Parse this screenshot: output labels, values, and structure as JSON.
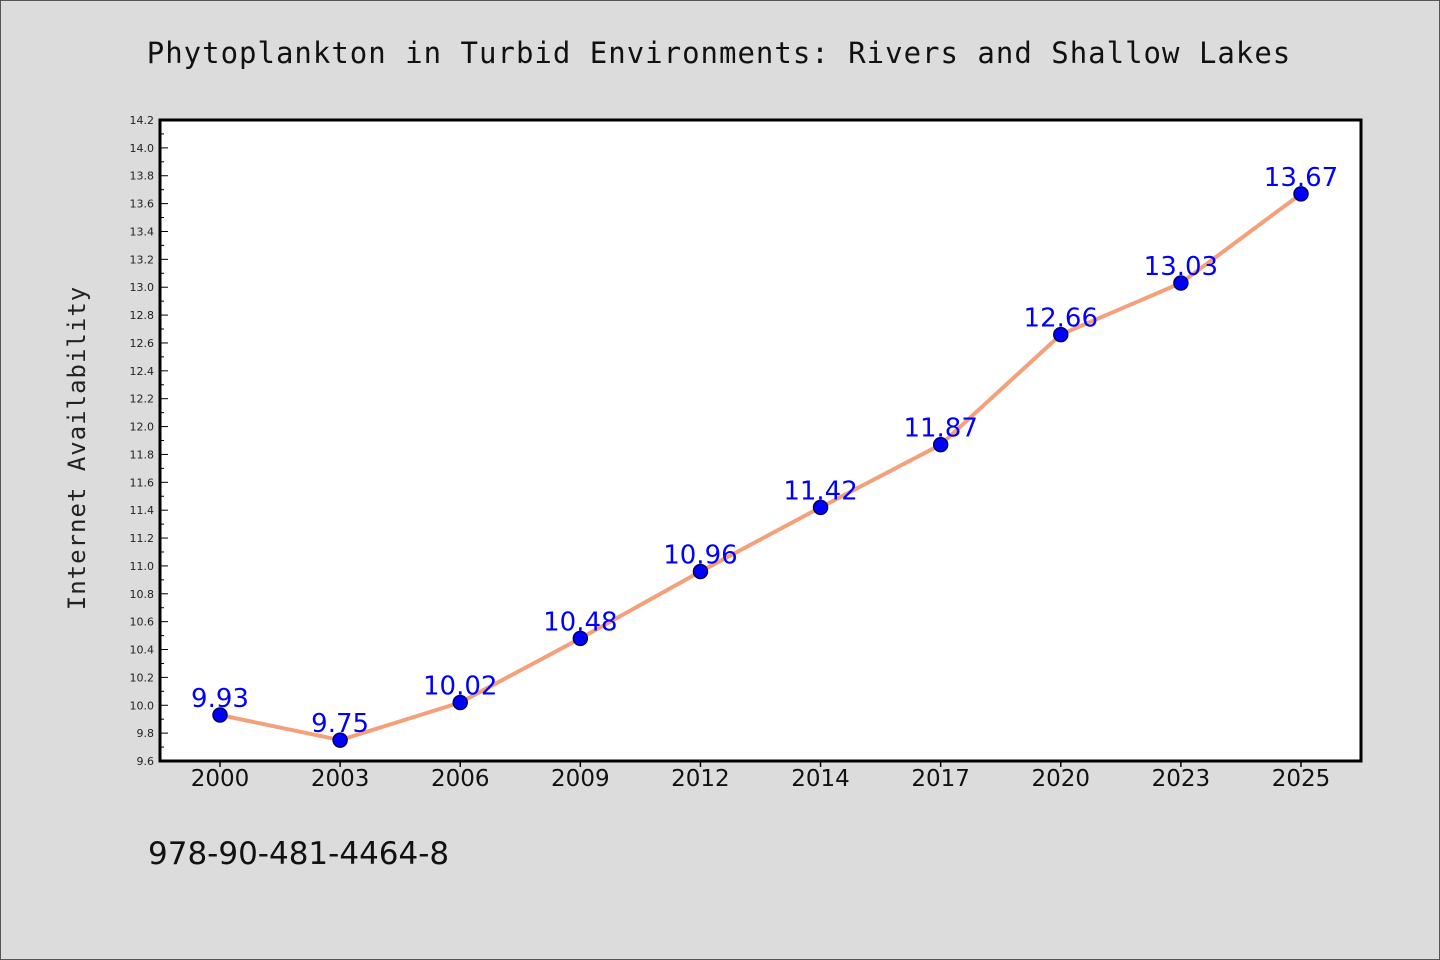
{
  "chart_data": {
    "type": "line",
    "title": "Phytoplankton in Turbid Environments: Rivers and Shallow Lakes",
    "xlabel": "",
    "ylabel": "Internet Availability",
    "categories": [
      "2000",
      "2003",
      "2006",
      "2009",
      "2012",
      "2014",
      "2017",
      "2020",
      "2023",
      "2025"
    ],
    "values": [
      9.93,
      9.75,
      10.02,
      10.48,
      10.96,
      11.42,
      11.87,
      12.66,
      13.03,
      13.67
    ],
    "ylim": [
      9.6,
      14.2
    ],
    "ytick_step": 0.2,
    "data_labels": true,
    "grid": false,
    "colors": {
      "line": "#f4a07a",
      "marker": "#0000ff",
      "marker_edge": "#000066",
      "label": "#0000ff"
    }
  },
  "footer": {
    "isbn": "978-90-481-4464-8"
  }
}
